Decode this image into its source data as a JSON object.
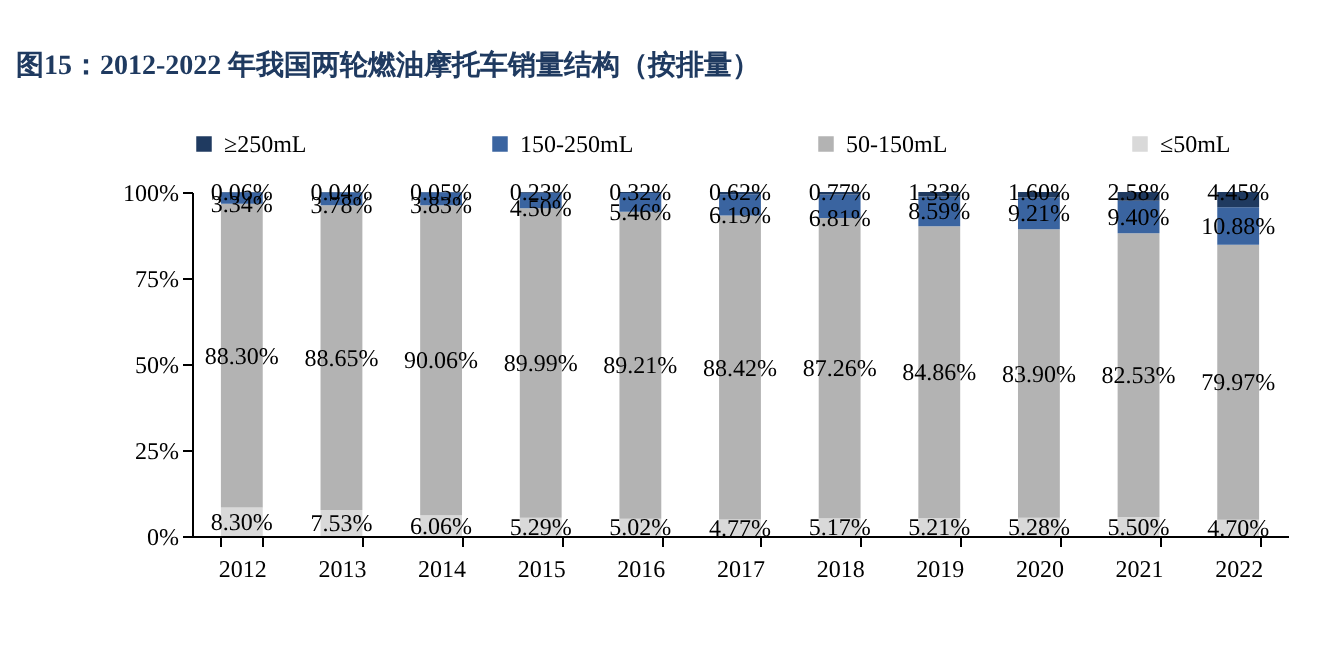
{
  "chart_data": {
    "type": "bar",
    "title": "图15：2012-2022 年我国两轮燃油摩托车销量结构（按排量）",
    "categories": [
      "2012",
      "2013",
      "2014",
      "2015",
      "2016",
      "2017",
      "2018",
      "2019",
      "2020",
      "2021",
      "2022"
    ],
    "stacked": true,
    "legend": "top",
    "grid": false,
    "ylim": [
      0,
      100
    ],
    "yticks": [
      {
        "value": 0,
        "label": "0%"
      },
      {
        "value": 25,
        "label": "25%"
      },
      {
        "value": 50,
        "label": "50%"
      },
      {
        "value": 75,
        "label": "75%"
      },
      {
        "value": 100,
        "label": "100%"
      }
    ],
    "series": [
      {
        "name": "≤50mL",
        "color": "#d9d9d9",
        "values": [
          8.3,
          7.53,
          6.06,
          5.29,
          5.02,
          4.77,
          5.17,
          5.21,
          5.28,
          5.5,
          4.7
        ],
        "value_labels": [
          "8.30%",
          "7.53%",
          "6.06%",
          "5.29%",
          "5.02%",
          "4.77%",
          "5.17%",
          "5.21%",
          "5.28%",
          "5.50%",
          "4.70%"
        ]
      },
      {
        "name": "50-150mL",
        "color": "#b3b3b3",
        "values": [
          88.3,
          88.65,
          90.06,
          89.99,
          89.21,
          88.42,
          87.26,
          84.86,
          83.9,
          82.53,
          79.97
        ],
        "value_labels": [
          "88.30%",
          "88.65%",
          "90.06%",
          "89.99%",
          "89.21%",
          "88.42%",
          "87.26%",
          "84.86%",
          "83.90%",
          "82.53%",
          "79.97%"
        ]
      },
      {
        "name": "150-250mL",
        "color": "#3a64a0",
        "values": [
          3.34,
          3.78,
          3.83,
          4.5,
          5.46,
          6.19,
          6.81,
          8.59,
          9.21,
          9.4,
          10.88
        ],
        "value_labels": [
          "3.34%",
          "3.78%",
          "3.83%",
          "4.50%",
          "5.46%",
          "6.19%",
          "6.81%",
          "8.59%",
          "9.21%",
          "9.40%",
          "10.88%"
        ]
      },
      {
        "name": "≥250mL",
        "color": "#1f3a60",
        "values": [
          0.06,
          0.04,
          0.05,
          0.23,
          0.32,
          0.62,
          0.77,
          1.33,
          1.6,
          2.58,
          4.45
        ],
        "value_labels": [
          "0.06%",
          "0.04%",
          "0.05%",
          "0.23%",
          "0.32%",
          "0.62%",
          "0.77%",
          "1.33%",
          "1.60%",
          "2.58%",
          "4.45%"
        ]
      }
    ]
  }
}
